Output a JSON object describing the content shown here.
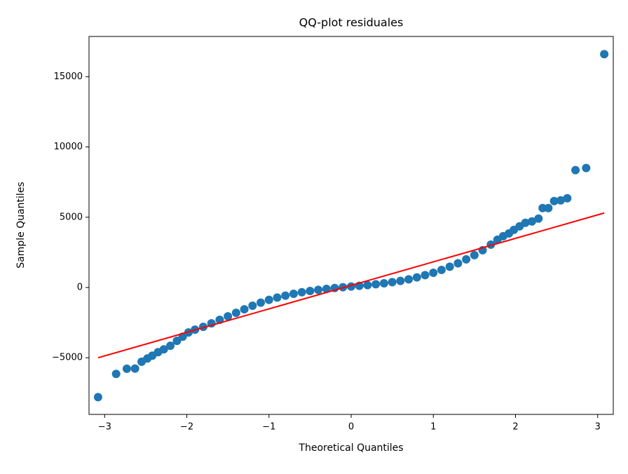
{
  "chart_data": {
    "type": "scatter",
    "title": "QQ-plot residuales",
    "x_label": "Theoretical Quantiles",
    "y_label": "Sample Quantiles",
    "points": {
      "color": "#1f77b4",
      "x": [
        -3.08,
        -2.86,
        -2.73,
        -2.63,
        -2.55,
        -2.48,
        -2.42,
        -2.35,
        -2.28,
        -2.2,
        -2.12,
        -2.05,
        -1.98,
        -1.9,
        -1.8,
        -1.7,
        -1.6,
        -1.5,
        -1.4,
        -1.3,
        -1.2,
        -1.1,
        -1.0,
        -0.9,
        -0.8,
        -0.7,
        -0.6,
        -0.5,
        -0.4,
        -0.3,
        -0.2,
        -0.1,
        0,
        0.1,
        0.2,
        0.3,
        0.4,
        0.5,
        0.6,
        0.7,
        0.8,
        0.9,
        1.0,
        1.1,
        1.2,
        1.3,
        1.4,
        1.5,
        1.6,
        1.7,
        1.78,
        1.85,
        1.92,
        1.98,
        2.05,
        2.12,
        2.2,
        2.28,
        2.33,
        2.4,
        2.47,
        2.55,
        2.63,
        2.73,
        2.86,
        3.08
      ],
      "values": [
        -7800,
        -6150,
        -5780,
        -5770,
        -5280,
        -5050,
        -4850,
        -4600,
        -4400,
        -4150,
        -3800,
        -3500,
        -3200,
        -3000,
        -2800,
        -2550,
        -2300,
        -2050,
        -1800,
        -1550,
        -1300,
        -1080,
        -880,
        -720,
        -580,
        -450,
        -340,
        -250,
        -170,
        -100,
        -40,
        20,
        70,
        120,
        170,
        230,
        300,
        380,
        470,
        580,
        720,
        880,
        1050,
        1250,
        1480,
        1720,
        2000,
        2300,
        2650,
        3050,
        3400,
        3650,
        3850,
        4100,
        4350,
        4600,
        4700,
        4900,
        5650,
        5650,
        6150,
        6200,
        6350,
        8350,
        8500,
        16600
      ]
    },
    "reference_line": {
      "color": "#ff0000",
      "x": [
        -3.08,
        3.08
      ],
      "values": [
        -5000,
        5300
      ]
    },
    "xlim": [
      -3.19,
      3.19
    ],
    "ylim": [
      -9030,
      17860
    ],
    "xticks": [
      {
        "value": -3,
        "label": "−3"
      },
      {
        "value": -2,
        "label": "−2"
      },
      {
        "value": -1,
        "label": "−1"
      },
      0,
      1,
      2,
      3
    ],
    "yticks": [
      {
        "value": -5000,
        "label": "−5000"
      },
      0,
      5000,
      10000,
      15000
    ],
    "grid": false
  }
}
